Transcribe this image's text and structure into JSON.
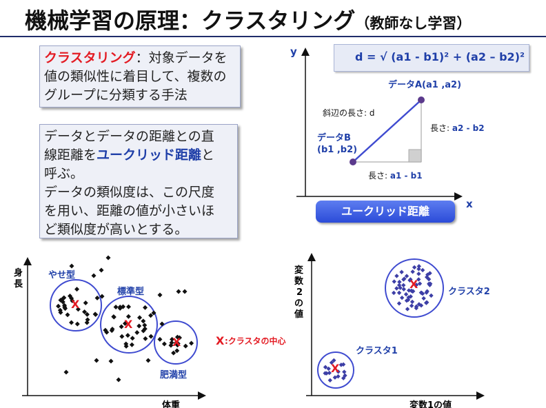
{
  "title": {
    "main": "機械学習の原理：クラスタリング",
    "sub": "（教師なし学習）"
  },
  "definition": {
    "term": "クラスタリング",
    "text": "：対象データを値の類似性に着目して、複数のグループに分類する手法"
  },
  "distance_box": {
    "line1": "データとデータの距離との直",
    "line2_pre": "線距離を",
    "line2_term": "ユークリッド距離",
    "line2_post": "と",
    "line3": "呼ぶ。",
    "line4": "データの類似度は、この尺度",
    "line5": "を用い、距離の値が小さいほ",
    "line6": "ど類似度が高いとする。"
  },
  "formula": "d = √ (a1 - b1)² + (a2 – b2)²",
  "diagram": {
    "y_axis": "y",
    "x_axis": "x",
    "point_a": "データA(a1 ,a2)",
    "point_b_1": "データB",
    "point_b_2": "(b1 ,b2)",
    "hyp_label": "斜辺の長さ: d",
    "vert_label_pre": "長さ: ",
    "vert_label_val": "a2 - b2",
    "horiz_label_pre": "長さ: ",
    "horiz_label_val": "a1 - b1",
    "button": "ユークリッド距離"
  },
  "left_scatter": {
    "y_label": "身長",
    "x_label": "体重",
    "clusters": [
      "やせ型",
      "標準型",
      "肥満型"
    ]
  },
  "legend": {
    "mark": "X",
    "text": ":クラスタの中心"
  },
  "right_scatter": {
    "y_label": "変数2の値",
    "x_label": "変数1の値",
    "clusters": [
      "クラスタ1",
      "クラスタ2"
    ]
  },
  "colors": {
    "accent_red": "#e31b23",
    "accent_blue": "#1f3fa8",
    "point_purple": "#5b3a8c"
  }
}
